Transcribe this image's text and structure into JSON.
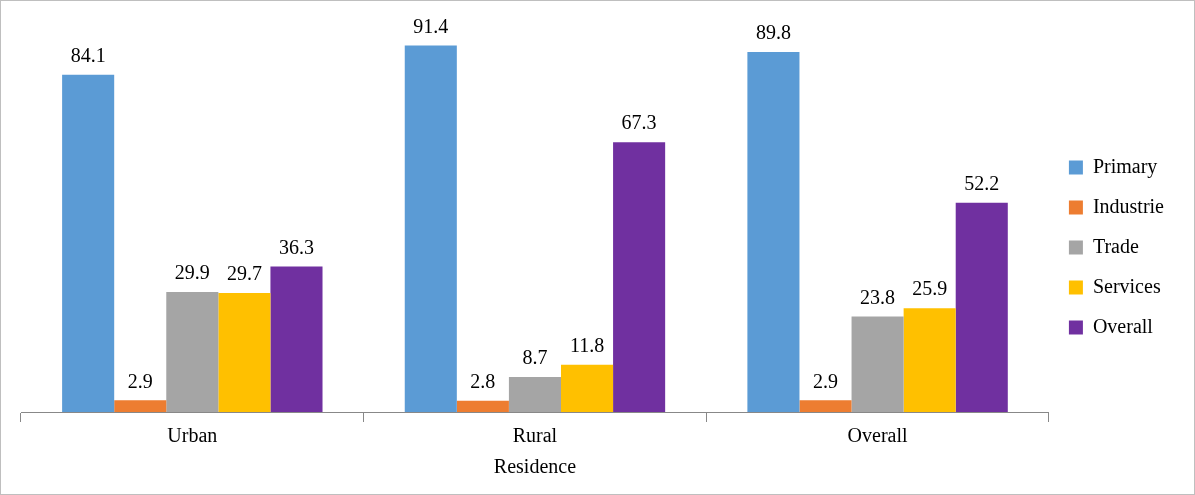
{
  "chart_data": {
    "type": "bar",
    "xlabel": "Residence",
    "categories": [
      "Urban",
      "Rural",
      "Overall"
    ],
    "series": [
      {
        "name": "Primary",
        "color": "#5b9bd5",
        "values": [
          84.1,
          91.4,
          89.8
        ]
      },
      {
        "name": "Industrie",
        "color": "#ed7d31",
        "values": [
          2.9,
          2.8,
          2.9
        ]
      },
      {
        "name": "Trade",
        "color": "#a5a5a5",
        "values": [
          29.9,
          8.7,
          23.8
        ]
      },
      {
        "name": "Services",
        "color": "#ffc000",
        "values": [
          29.7,
          11.8,
          25.9
        ]
      },
      {
        "name": "Overall",
        "color": "#7030a0",
        "values": [
          36.3,
          67.3,
          52.2
        ]
      }
    ],
    "data_labels": true,
    "legend": "right",
    "grid": false
  }
}
